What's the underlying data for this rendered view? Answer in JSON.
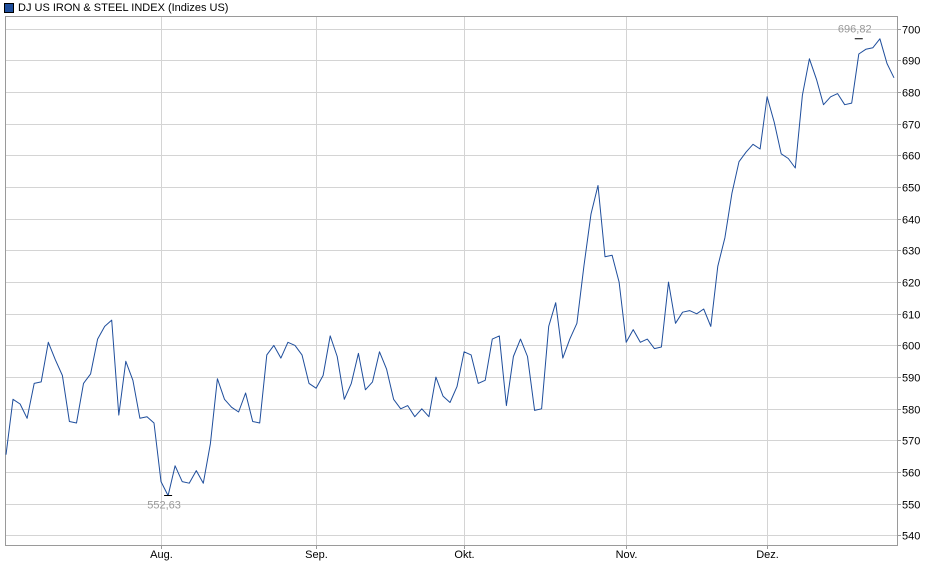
{
  "legend": {
    "label": "DJ US IRON & STEEL INDEX (Indizes US)",
    "swatch_color": "#1f4e9c"
  },
  "colors": {
    "line": "#1f4e9c",
    "grid": "#d4d4d4",
    "axis": "#9a9a9a",
    "annotation": "#999999"
  },
  "chart_data": {
    "type": "line",
    "title": "",
    "xlabel": "",
    "ylabel": "",
    "ylim": [
      537,
      704
    ],
    "y_ticks": [
      540,
      550,
      560,
      570,
      580,
      590,
      600,
      610,
      620,
      630,
      640,
      650,
      660,
      670,
      680,
      690,
      700
    ],
    "y_tick_labels": [
      "540",
      "550",
      "560",
      "570",
      "580",
      "590",
      "600",
      "610",
      "620",
      "630",
      "640",
      "650",
      "660",
      "670",
      "680",
      "690",
      "700"
    ],
    "x_ticks": [
      {
        "index": 22,
        "label": "Aug."
      },
      {
        "index": 44,
        "label": "Sep."
      },
      {
        "index": 65,
        "label": "Okt."
      },
      {
        "index": 88,
        "label": "Nov."
      },
      {
        "index": 108,
        "label": "Dez."
      }
    ],
    "grid": true,
    "legend_position": "top-left",
    "series": [
      {
        "name": "DJ US IRON & STEEL INDEX (Indizes US)",
        "values": [
          565.5,
          583,
          581.5,
          577,
          588,
          588.5,
          601,
          595.5,
          590.5,
          576,
          575.5,
          588,
          591,
          602,
          606,
          608,
          578,
          595,
          589,
          577,
          577.5,
          575.5,
          557,
          552.6,
          562,
          557,
          556.5,
          560.5,
          556.5,
          569,
          589.5,
          583,
          580.5,
          579,
          585,
          576,
          575.5,
          597,
          600,
          596,
          601,
          600,
          597,
          588,
          586.5,
          590.5,
          603,
          596.5,
          583,
          588,
          597.5,
          586,
          588.5,
          598,
          592.5,
          583,
          580,
          581,
          577.5,
          580,
          577.5,
          590,
          584,
          582,
          587,
          598,
          597,
          588,
          589,
          602,
          603,
          581,
          596.5,
          602,
          596.5,
          579.5,
          580,
          606,
          613.5,
          596,
          602,
          607,
          625,
          641.5,
          650.5,
          628,
          628.5,
          620,
          601,
          605,
          601,
          602,
          599,
          599.5,
          620,
          607,
          610.5,
          611,
          610,
          611.5,
          606,
          625,
          634,
          648,
          658,
          661,
          663.5,
          662,
          678.5,
          670.5,
          660.5,
          659,
          656,
          679,
          690.5,
          684,
          676,
          678.5,
          679.5,
          676,
          676.5,
          692,
          693.5,
          694,
          696.8,
          689,
          684.5
        ]
      }
    ],
    "annotations": [
      {
        "label": "696,82",
        "value": 696.82,
        "index": 121,
        "kind": "max"
      },
      {
        "label": "552,63",
        "value": 552.63,
        "index": 23,
        "kind": "min"
      }
    ]
  }
}
